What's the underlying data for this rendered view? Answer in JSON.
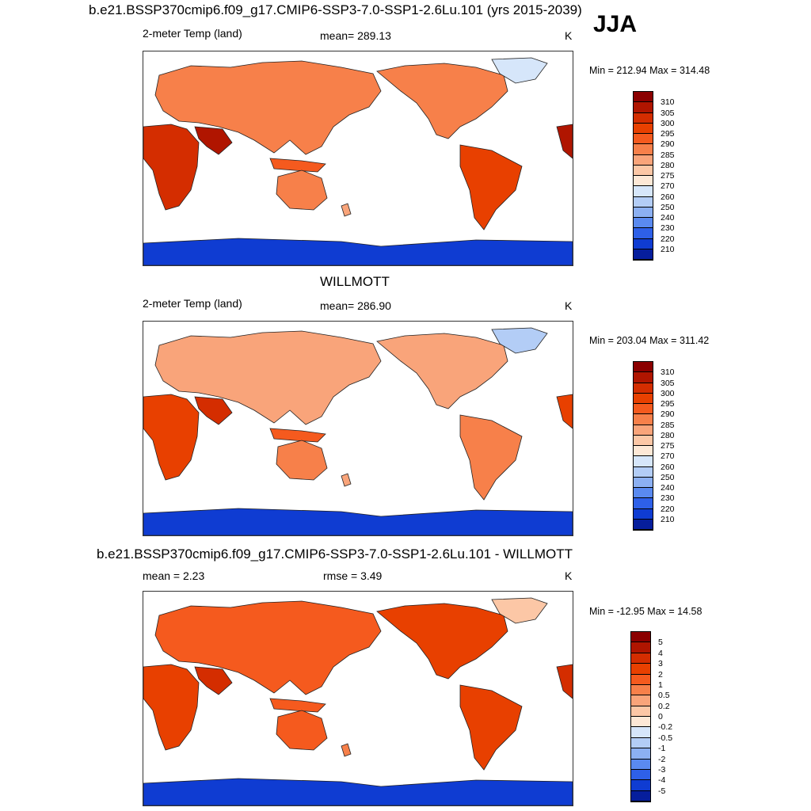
{
  "figure": {
    "season": "JJA",
    "panels": [
      {
        "title": "b.e21.BSSP370cmip6.f09_g17.CMIP6-SSP3-7.0-SSP1-2.6Lu.101 (yrs 2015-2039)",
        "left_label": "2-meter Temp (land)",
        "center_label": "mean= 289.13",
        "right_label": "K",
        "minmax": "Min = 212.94 Max = 314.48",
        "colorbar": {
          "ticks": [
            "310",
            "305",
            "300",
            "295",
            "290",
            "285",
            "280",
            "275",
            "270",
            "260",
            "250",
            "240",
            "230",
            "220",
            "210"
          ],
          "colors": [
            "#8b0000",
            "#b01500",
            "#d42d00",
            "#e84000",
            "#f55a1e",
            "#f7804a",
            "#f9a47a",
            "#fcc7a6",
            "#fde8d6",
            "#d6e6fa",
            "#b3cdf6",
            "#8cb0f2",
            "#5a8af0",
            "#2e60e8",
            "#0f3cd2",
            "#061e9c"
          ]
        }
      },
      {
        "title": "WILLMOTT",
        "left_label": "2-meter Temp (land)",
        "center_label": "mean= 286.90",
        "right_label": "K",
        "minmax": "Min = 203.04 Max = 311.42",
        "colorbar": {
          "ticks": [
            "310",
            "305",
            "300",
            "295",
            "290",
            "285",
            "280",
            "275",
            "270",
            "260",
            "250",
            "240",
            "230",
            "220",
            "210"
          ],
          "colors": [
            "#8b0000",
            "#b01500",
            "#d42d00",
            "#e84000",
            "#f55a1e",
            "#f7804a",
            "#f9a47a",
            "#fcc7a6",
            "#fde8d6",
            "#d6e6fa",
            "#b3cdf6",
            "#8cb0f2",
            "#5a8af0",
            "#2e60e8",
            "#0f3cd2",
            "#061e9c"
          ]
        }
      },
      {
        "title": "b.e21.BSSP370cmip6.f09_g17.CMIP6-SSP3-7.0-SSP1-2.6Lu.101 - WILLMOTT",
        "left_label": "mean =   2.23",
        "center_label": "rmse =   3.49",
        "right_label": "K",
        "minmax": "Min = -12.95 Max =  14.58",
        "colorbar": {
          "ticks": [
            "5",
            "4",
            "3",
            "2",
            "1",
            "0.5",
            "0.2",
            "0",
            "-0.2",
            "-0.5",
            "-1",
            "-2",
            "-3",
            "-4",
            "-5"
          ],
          "colors": [
            "#8b0000",
            "#b01500",
            "#d42d00",
            "#e84000",
            "#f55a1e",
            "#f7804a",
            "#f9a47a",
            "#fcc7a6",
            "#fde8d6",
            "#d6e6fa",
            "#b3cdf6",
            "#8cb0f2",
            "#5a8af0",
            "#2e60e8",
            "#0f3cd2",
            "#061e9c"
          ]
        }
      }
    ]
  }
}
